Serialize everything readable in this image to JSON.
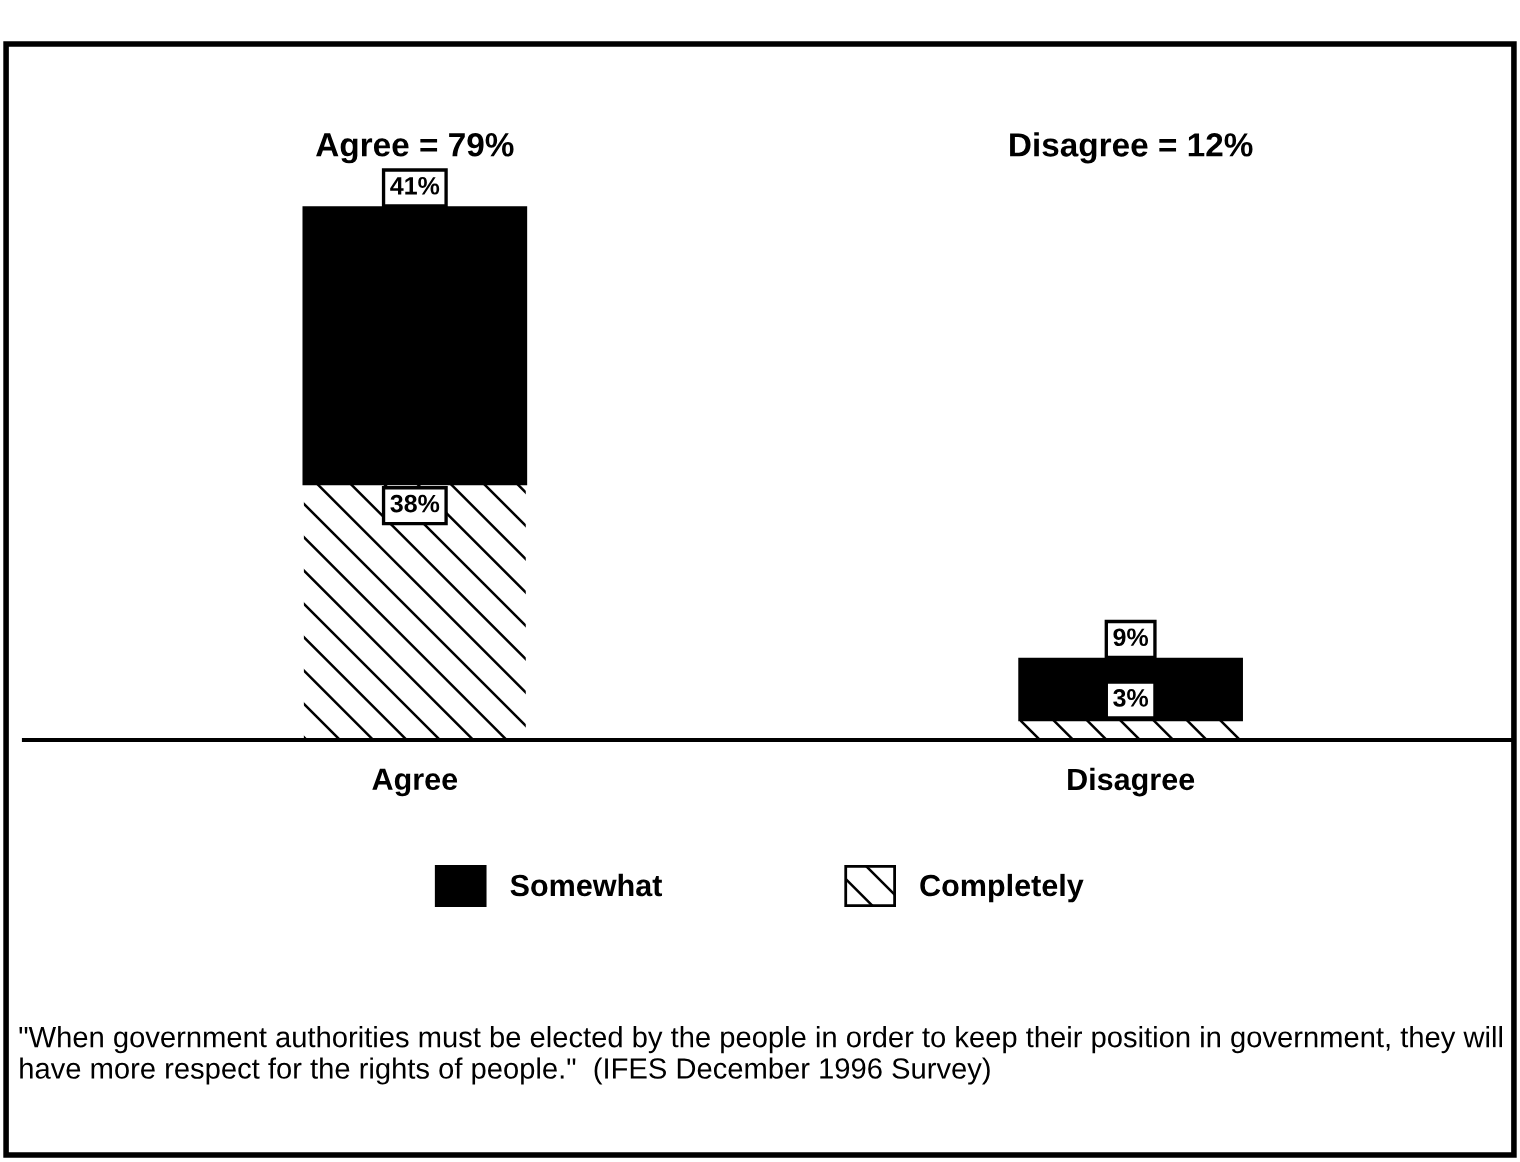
{
  "chart_data": {
    "type": "bar",
    "stacked": true,
    "categories": [
      "Agree",
      "Disagree"
    ],
    "series": [
      {
        "name": "Completely",
        "color": "#ffffff",
        "values": [
          38,
          3
        ],
        "value_labels": [
          "38%",
          "3%"
        ]
      },
      {
        "name": "Somewhat",
        "color": "#000000",
        "values": [
          41,
          9
        ],
        "value_labels": [
          "41%",
          "9%"
        ]
      }
    ],
    "legend": "bottom",
    "grid": false,
    "annotations": [
      "Agree = 79%",
      "Disagree = 12%",
      "\"When government authorities must be elected by the people in order to keep their position in government, they will have more respect for the rights of people.\"  (IFES December 1996 Survey)"
    ]
  }
}
